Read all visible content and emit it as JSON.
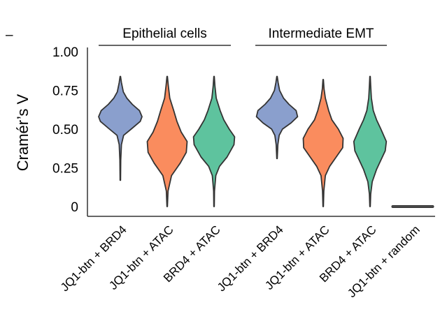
{
  "chart_data": {
    "type": "violin",
    "ylabel": "Cramér’s V",
    "ylim": [
      0,
      1
    ],
    "yticks": [
      {
        "value": 0,
        "label": "0"
      },
      {
        "value": 0.25,
        "label": "0.25"
      },
      {
        "value": 0.5,
        "label": "0.50"
      },
      {
        "value": 0.75,
        "label": "0.75"
      },
      {
        "value": 1.0,
        "label": "1.00"
      }
    ],
    "groups": [
      {
        "label": "Epithelial cells",
        "categories": [
          0,
          1,
          2
        ]
      },
      {
        "label": "Intermediate EMT",
        "categories": [
          3,
          4,
          5
        ]
      }
    ],
    "legend_mark": "–",
    "colors": {
      "blue": "#8a9fcd",
      "orange": "#fa8c5e",
      "green": "#5ec39e",
      "outline": "#333333"
    },
    "categories": [
      "JQ1-btn + BRD4",
      "JQ1-btn + ATAC",
      "BRD4 + ATAC",
      "JQ1-btn + BRD4",
      "JQ1-btn + ATAC",
      "BRD4 + ATAC",
      "JQ1-btn + random"
    ],
    "series": [
      {
        "category": "JQ1-btn + BRD4",
        "color": "#8a9fcd",
        "min": 0.17,
        "max": 0.84,
        "median": 0.58,
        "profile": [
          [
            0.17,
            0.01
          ],
          [
            0.3,
            0.02
          ],
          [
            0.4,
            0.05
          ],
          [
            0.46,
            0.15
          ],
          [
            0.5,
            0.5
          ],
          [
            0.55,
            0.92
          ],
          [
            0.58,
            1.0
          ],
          [
            0.62,
            0.88
          ],
          [
            0.66,
            0.55
          ],
          [
            0.7,
            0.3
          ],
          [
            0.74,
            0.14
          ],
          [
            0.8,
            0.05
          ],
          [
            0.84,
            0.01
          ]
        ]
      },
      {
        "category": "JQ1-btn + ATAC",
        "color": "#fa8c5e",
        "min": 0.0,
        "max": 0.84,
        "median": 0.4,
        "profile": [
          [
            0.0,
            0.01
          ],
          [
            0.1,
            0.04
          ],
          [
            0.2,
            0.2
          ],
          [
            0.28,
            0.6
          ],
          [
            0.35,
            0.88
          ],
          [
            0.42,
            0.92
          ],
          [
            0.48,
            0.65
          ],
          [
            0.55,
            0.45
          ],
          [
            0.62,
            0.3
          ],
          [
            0.7,
            0.12
          ],
          [
            0.78,
            0.05
          ],
          [
            0.84,
            0.01
          ]
        ]
      },
      {
        "category": "BRD4 + ATAC",
        "color": "#5ec39e",
        "min": 0.0,
        "max": 0.84,
        "median": 0.44,
        "profile": [
          [
            0.0,
            0.01
          ],
          [
            0.1,
            0.02
          ],
          [
            0.2,
            0.08
          ],
          [
            0.26,
            0.25
          ],
          [
            0.32,
            0.6
          ],
          [
            0.4,
            0.92
          ],
          [
            0.45,
            0.95
          ],
          [
            0.5,
            0.7
          ],
          [
            0.56,
            0.45
          ],
          [
            0.62,
            0.28
          ],
          [
            0.7,
            0.1
          ],
          [
            0.78,
            0.04
          ],
          [
            0.84,
            0.01
          ]
        ]
      },
      {
        "category": "JQ1-btn + BRD4",
        "color": "#8a9fcd",
        "min": 0.31,
        "max": 0.84,
        "median": 0.59,
        "profile": [
          [
            0.31,
            0.01
          ],
          [
            0.4,
            0.04
          ],
          [
            0.46,
            0.1
          ],
          [
            0.5,
            0.25
          ],
          [
            0.54,
            0.65
          ],
          [
            0.58,
            0.95
          ],
          [
            0.62,
            0.88
          ],
          [
            0.66,
            0.55
          ],
          [
            0.7,
            0.3
          ],
          [
            0.75,
            0.12
          ],
          [
            0.8,
            0.05
          ],
          [
            0.84,
            0.01
          ]
        ]
      },
      {
        "category": "JQ1-btn + ATAC",
        "color": "#fa8c5e",
        "min": 0.0,
        "max": 0.82,
        "median": 0.42,
        "profile": [
          [
            0.0,
            0.01
          ],
          [
            0.1,
            0.03
          ],
          [
            0.2,
            0.1
          ],
          [
            0.26,
            0.3
          ],
          [
            0.32,
            0.6
          ],
          [
            0.38,
            0.9
          ],
          [
            0.44,
            0.92
          ],
          [
            0.5,
            0.7
          ],
          [
            0.56,
            0.4
          ],
          [
            0.62,
            0.25
          ],
          [
            0.7,
            0.1
          ],
          [
            0.76,
            0.04
          ],
          [
            0.82,
            0.01
          ]
        ]
      },
      {
        "category": "BRD4 + ATAC",
        "color": "#5ec39e",
        "min": 0.0,
        "max": 0.84,
        "median": 0.42,
        "profile": [
          [
            0.0,
            0.01
          ],
          [
            0.08,
            0.03
          ],
          [
            0.16,
            0.1
          ],
          [
            0.24,
            0.3
          ],
          [
            0.3,
            0.5
          ],
          [
            0.36,
            0.7
          ],
          [
            0.42,
            0.75
          ],
          [
            0.5,
            0.5
          ],
          [
            0.56,
            0.3
          ],
          [
            0.62,
            0.15
          ],
          [
            0.7,
            0.06
          ],
          [
            0.78,
            0.03
          ],
          [
            0.84,
            0.01
          ]
        ]
      },
      {
        "category": "JQ1-btn + random",
        "color": "#4a4a4a",
        "min": 0.0,
        "max": 0.01,
        "median": 0.005,
        "profile": [
          [
            0.0,
            0.95
          ],
          [
            0.005,
            1.0
          ],
          [
            0.01,
            0.95
          ]
        ]
      }
    ]
  }
}
